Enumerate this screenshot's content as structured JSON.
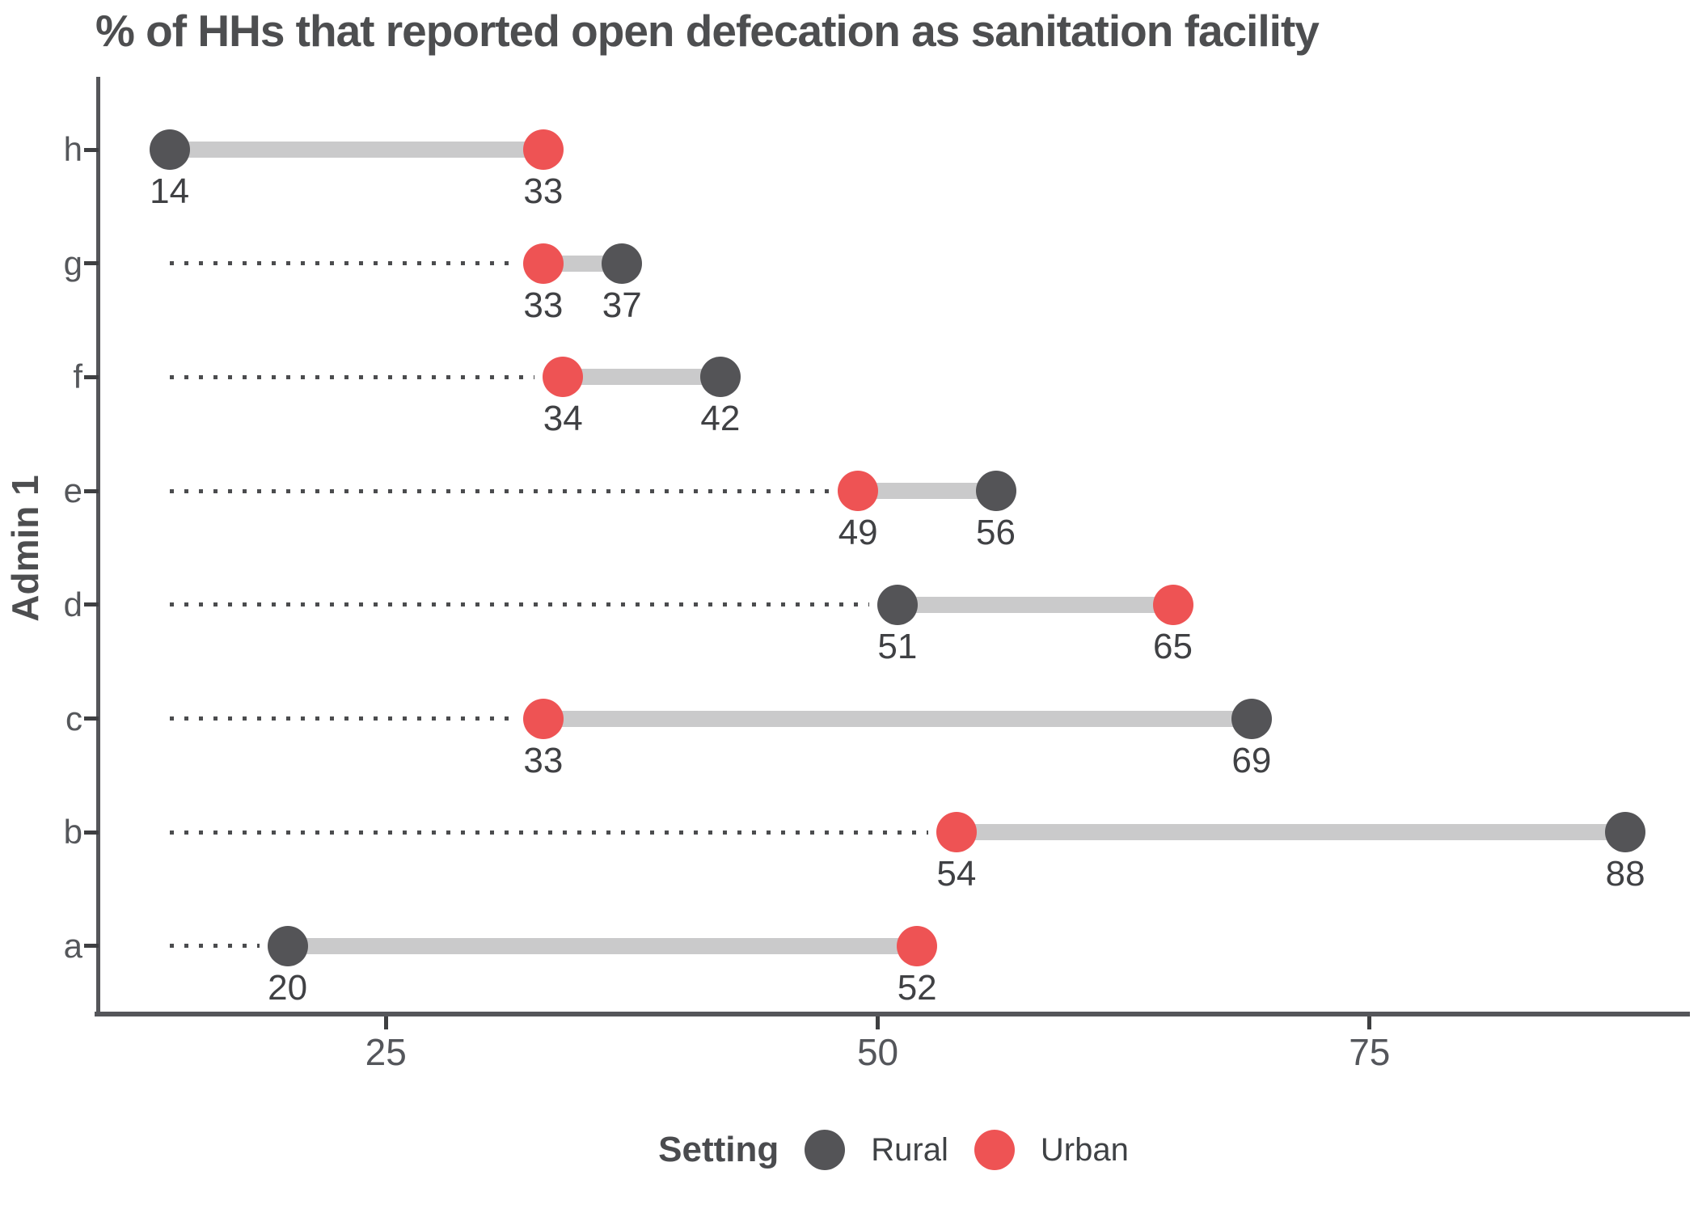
{
  "title": "% of HHs that reported open defecation as sanitation facility",
  "chart_data": {
    "type": "dumbbell",
    "title": "% of HHs that reported open defecation as sanitation facility",
    "xlabel": "",
    "ylabel": "Admin 1",
    "x_ticks": [
      25,
      50,
      75
    ],
    "x_range": [
      10.4,
      91.2
    ],
    "baseline_value": 14,
    "grid": false,
    "categories_top_to_bottom": [
      "h",
      "g",
      "f",
      "e",
      "d",
      "c",
      "b",
      "a"
    ],
    "rows": [
      {
        "category": "h",
        "rural": 14,
        "urban": 33
      },
      {
        "category": "g",
        "rural": 37,
        "urban": 33
      },
      {
        "category": "f",
        "rural": 42,
        "urban": 34
      },
      {
        "category": "e",
        "rural": 56,
        "urban": 49
      },
      {
        "category": "d",
        "rural": 51,
        "urban": 65
      },
      {
        "category": "c",
        "rural": 69,
        "urban": 33
      },
      {
        "category": "b",
        "rural": 88,
        "urban": 54
      },
      {
        "category": "a",
        "rural": 20,
        "urban": 52
      }
    ],
    "legend": {
      "title": "Setting",
      "position": "bottom",
      "entries": [
        {
          "label": "Rural",
          "color": "#545457"
        },
        {
          "label": "Urban",
          "color": "#ee5354"
        }
      ]
    },
    "colors": {
      "rural": "#545457",
      "urban": "#ee5354",
      "connector": "#cacacb",
      "leader": "#4b4c4e",
      "axis": "#55565a"
    }
  }
}
